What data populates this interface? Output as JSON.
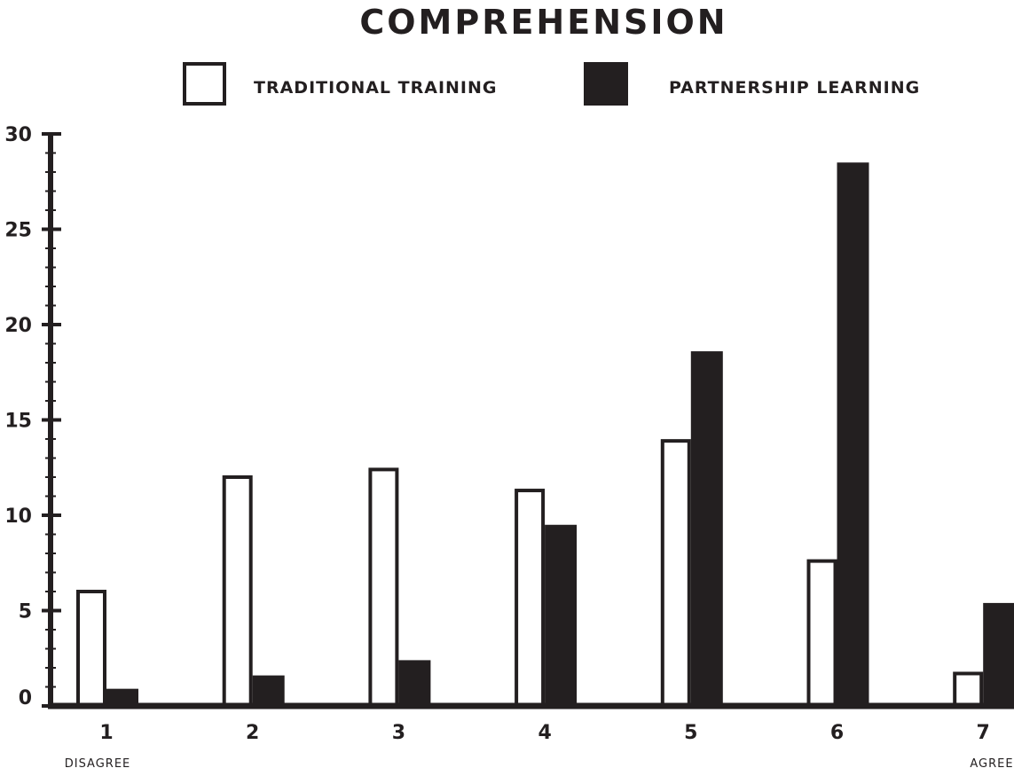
{
  "colors": {
    "ink": "#231f20",
    "background": "#ffffff"
  },
  "chart_data": {
    "type": "bar",
    "title": "COMPREHENSION",
    "xlabel": "",
    "ylabel": "",
    "categories": [
      "1",
      "2",
      "3",
      "4",
      "5",
      "6",
      "7"
    ],
    "x_anchor_labels": {
      "left": "DISAGREE",
      "right": "AGREE"
    },
    "ylim": [
      0,
      30
    ],
    "yticks": [
      0,
      5,
      10,
      15,
      20,
      25,
      30
    ],
    "ytick_labels": [
      "0",
      "5",
      "10",
      "15",
      "20",
      "25",
      "30"
    ],
    "grid": false,
    "legend_position": "top",
    "series": [
      {
        "name": "TRADITIONAL TRAINING",
        "style": "outline",
        "values": [
          6,
          12,
          12.4,
          11.3,
          13.9,
          7.6,
          1.7
        ]
      },
      {
        "name": "PARTNERSHIP LEARNING",
        "style": "filled",
        "values": [
          0.9,
          1.6,
          2.4,
          9.5,
          18.6,
          28.5,
          5.4
        ]
      }
    ]
  }
}
